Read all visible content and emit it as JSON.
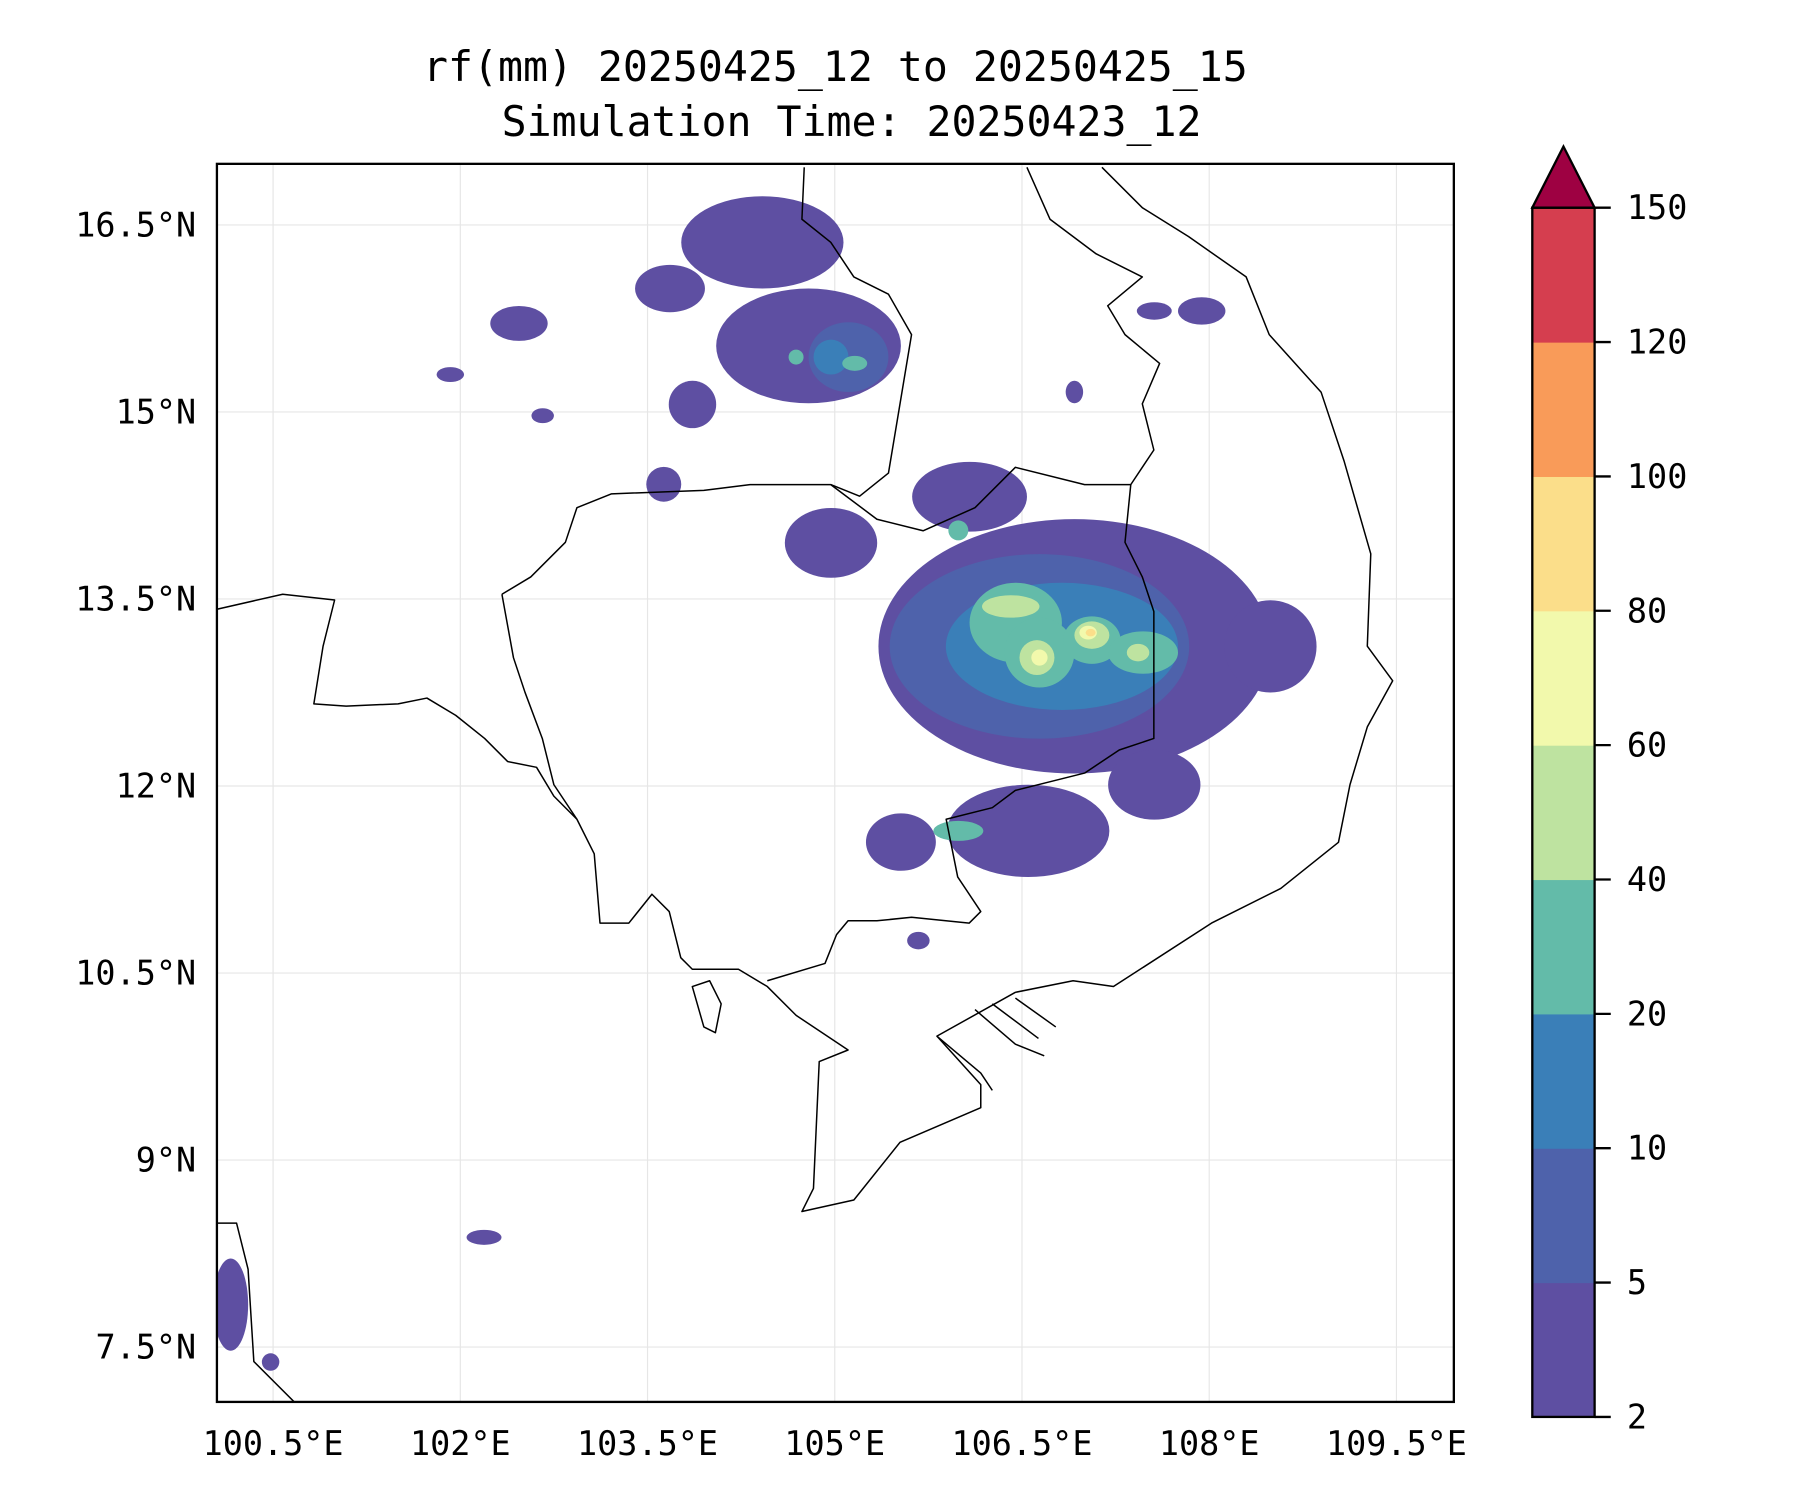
{
  "chart_data": {
    "type": "heatmap",
    "title_line1": "rf(mm) 20250425_12 to 20250425_15",
    "title_line2": "Simulation Time: 20250423_12",
    "xlabel": "",
    "ylabel": "",
    "xlim": [
      100.05,
      109.96
    ],
    "ylim": [
      7.06,
      16.99
    ],
    "grid": true,
    "x_ticks": [
      100.5,
      102,
      103.5,
      105,
      106.5,
      108,
      109.5
    ],
    "x_tick_labels": [
      "100.5°E",
      "102°E",
      "103.5°E",
      "105°E",
      "106.5°E",
      "108°E",
      "109.5°E"
    ],
    "y_ticks": [
      16.5,
      15,
      13.5,
      12,
      10.5,
      9,
      7.5
    ],
    "y_tick_labels": [
      "16.5°N",
      "15°N",
      "13.5°N",
      "12°N",
      "10.5°N",
      "9°N",
      "7.5°N"
    ],
    "colorbar": {
      "levels": [
        2,
        5,
        10,
        20,
        40,
        60,
        80,
        100,
        120,
        150
      ],
      "tick_labels": [
        "2",
        "5",
        "10",
        "20",
        "40",
        "60",
        "80",
        "100",
        "120",
        "150"
      ],
      "colors": [
        "#5e4fa2",
        "#4e62ab",
        "#3a7fb8",
        "#63bba9",
        "#bee3a0",
        "#f2f9ac",
        "#fbde8a",
        "#f99b59",
        "#d53e4f"
      ],
      "extend_max_color": "#9e0142",
      "placement": "right"
    },
    "rain_cells": [
      {
        "lon": 106.92,
        "lat": 13.12,
        "rlon": 1.57,
        "rlat": 1.02,
        "level": 0
      },
      {
        "lon": 108.49,
        "lat": 13.12,
        "rlon": 0.37,
        "rlat": 0.37,
        "level": 0
      },
      {
        "lon": 107.56,
        "lat": 12.01,
        "rlon": 0.37,
        "rlat": 0.28,
        "level": 0
      },
      {
        "lon": 106.55,
        "lat": 11.64,
        "rlon": 0.65,
        "rlat": 0.37,
        "level": 0
      },
      {
        "lon": 105.53,
        "lat": 11.55,
        "rlon": 0.28,
        "rlat": 0.23,
        "level": 0
      },
      {
        "lon": 106.08,
        "lat": 14.32,
        "rlon": 0.46,
        "rlat": 0.28,
        "level": 0
      },
      {
        "lon": 104.97,
        "lat": 13.95,
        "rlon": 0.37,
        "rlat": 0.28,
        "level": 0
      },
      {
        "lon": 104.42,
        "lat": 16.36,
        "rlon": 0.65,
        "rlat": 0.37,
        "level": 0
      },
      {
        "lon": 104.79,
        "lat": 15.53,
        "rlon": 0.74,
        "rlat": 0.46,
        "level": 0
      },
      {
        "lon": 103.68,
        "lat": 15.99,
        "rlon": 0.28,
        "rlat": 0.19,
        "level": 0
      },
      {
        "lon": 102.47,
        "lat": 15.71,
        "rlon": 0.23,
        "rlat": 0.14,
        "level": 0
      },
      {
        "lon": 107.56,
        "lat": 15.81,
        "rlon": 0.14,
        "rlat": 0.07,
        "level": 0
      },
      {
        "lon": 107.94,
        "lat": 15.81,
        "rlon": 0.19,
        "rlat": 0.11,
        "level": 0
      },
      {
        "lon": 106.92,
        "lat": 15.16,
        "rlon": 0.07,
        "rlat": 0.09,
        "level": 0
      },
      {
        "lon": 103.86,
        "lat": 15.06,
        "rlon": 0.19,
        "rlat": 0.19,
        "level": 0
      },
      {
        "lon": 103.63,
        "lat": 14.42,
        "rlon": 0.14,
        "rlat": 0.14,
        "level": 0
      },
      {
        "lon": 102.66,
        "lat": 14.97,
        "rlon": 0.09,
        "rlat": 0.06,
        "level": 0
      },
      {
        "lon": 101.92,
        "lat": 15.3,
        "rlon": 0.11,
        "rlat": 0.06,
        "level": 0
      },
      {
        "lon": 105.67,
        "lat": 10.76,
        "rlon": 0.09,
        "rlat": 0.07,
        "level": 0
      },
      {
        "lon": 102.19,
        "lat": 8.38,
        "rlon": 0.14,
        "rlat": 0.06,
        "level": 0
      },
      {
        "lon": 100.16,
        "lat": 7.84,
        "rlon": 0.14,
        "rlat": 0.37,
        "level": 0
      },
      {
        "lon": 100.48,
        "lat": 7.38,
        "rlon": 0.07,
        "rlat": 0.07,
        "level": 0
      },
      {
        "lon": 106.64,
        "lat": 13.12,
        "rlon": 1.2,
        "rlat": 0.74,
        "level": 1
      },
      {
        "lon": 105.11,
        "lat": 15.44,
        "rlon": 0.32,
        "rlat": 0.28,
        "level": 1
      },
      {
        "lon": 106.82,
        "lat": 13.12,
        "rlon": 0.93,
        "rlat": 0.51,
        "level": 2
      },
      {
        "lon": 104.97,
        "lat": 15.44,
        "rlon": 0.14,
        "rlat": 0.14,
        "level": 2
      },
      {
        "lon": 106.45,
        "lat": 13.31,
        "rlon": 0.37,
        "rlat": 0.32,
        "level": 3
      },
      {
        "lon": 106.64,
        "lat": 13.07,
        "rlon": 0.28,
        "rlat": 0.28,
        "level": 3
      },
      {
        "lon": 107.06,
        "lat": 13.17,
        "rlon": 0.23,
        "rlat": 0.19,
        "level": 3
      },
      {
        "lon": 107.47,
        "lat": 13.07,
        "rlon": 0.28,
        "rlat": 0.17,
        "level": 3
      },
      {
        "lon": 105.99,
        "lat": 11.64,
        "rlon": 0.2,
        "rlat": 0.08,
        "level": 3
      },
      {
        "lon": 105.99,
        "lat": 14.05,
        "rlon": 0.08,
        "rlat": 0.08,
        "level": 3
      },
      {
        "lon": 104.69,
        "lat": 15.44,
        "rlon": 0.06,
        "rlat": 0.06,
        "level": 3
      },
      {
        "lon": 105.16,
        "lat": 15.39,
        "rlon": 0.1,
        "rlat": 0.06,
        "level": 3
      },
      {
        "lon": 106.41,
        "lat": 13.44,
        "rlon": 0.23,
        "rlat": 0.09,
        "level": 4
      },
      {
        "lon": 106.62,
        "lat": 13.03,
        "rlon": 0.14,
        "rlat": 0.14,
        "level": 4
      },
      {
        "lon": 107.06,
        "lat": 13.21,
        "rlon": 0.14,
        "rlat": 0.11,
        "level": 4
      },
      {
        "lon": 107.43,
        "lat": 13.07,
        "rlon": 0.09,
        "rlat": 0.07,
        "level": 4
      },
      {
        "lon": 106.64,
        "lat": 13.03,
        "rlon": 0.065,
        "rlat": 0.065,
        "level": 5
      },
      {
        "lon": 107.03,
        "lat": 13.23,
        "rlon": 0.07,
        "rlat": 0.055,
        "level": 5
      },
      {
        "lon": 107.05,
        "lat": 13.23,
        "rlon": 0.04,
        "rlat": 0.03,
        "level": 6
      }
    ]
  }
}
